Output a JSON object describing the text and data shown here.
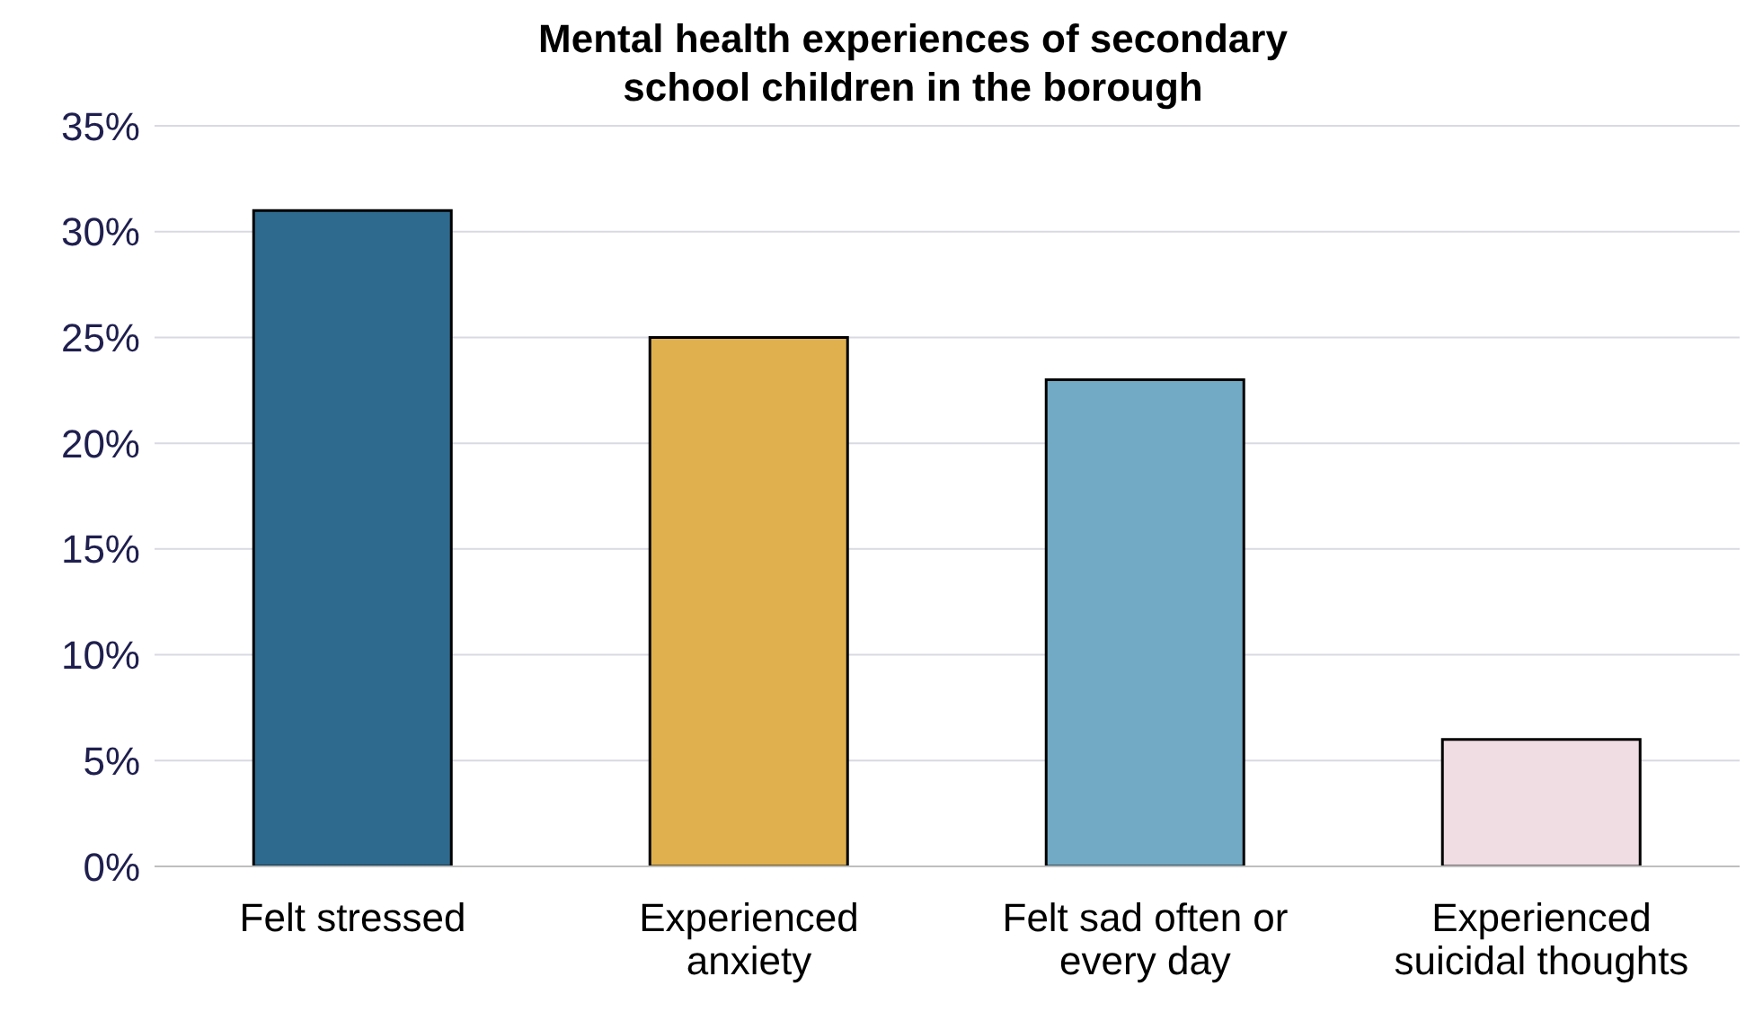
{
  "chart_data": {
    "type": "bar",
    "title": "Mental health experiences of secondary school children in the borough",
    "categories": [
      "Felt stressed",
      "Experienced anxiety",
      "Felt sad often or every day",
      "Experienced suicidal thoughts"
    ],
    "values": [
      31,
      25,
      23,
      6
    ],
    "colors": [
      "#2e6a8e",
      "#e0b04e",
      "#72aac5",
      "#f0dde3"
    ],
    "ylim": [
      0,
      35
    ],
    "yticks": [
      {
        "value": 0,
        "label": "0%"
      },
      {
        "value": 5,
        "label": "5%"
      },
      {
        "value": 10,
        "label": "10%"
      },
      {
        "value": 15,
        "label": "15%"
      },
      {
        "value": 20,
        "label": "20%"
      },
      {
        "value": 25,
        "label": "25%"
      },
      {
        "value": 30,
        "label": "30%"
      },
      {
        "value": 35,
        "label": "35%"
      }
    ],
    "grid": "y",
    "legend": false
  }
}
